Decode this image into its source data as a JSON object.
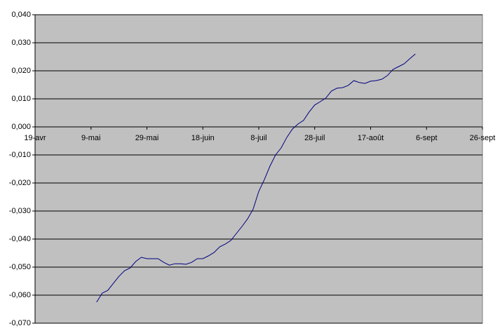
{
  "chart_data": {
    "type": "line",
    "categories": [
      "19-avr",
      null,
      null,
      null,
      null,
      null,
      null,
      null,
      null,
      null,
      "9-mai",
      null,
      null,
      null,
      null,
      null,
      null,
      null,
      null,
      null,
      "29-mai",
      null,
      null,
      null,
      null,
      null,
      null,
      null,
      null,
      null,
      "18-juin",
      null,
      null,
      null,
      null,
      null,
      null,
      null,
      null,
      null,
      "8-juil",
      null,
      null,
      null,
      null,
      null,
      null,
      null,
      null,
      null,
      "28-juil",
      null,
      null,
      null,
      null,
      null,
      null,
      null,
      null,
      null,
      "17-août",
      null,
      null,
      null,
      null,
      null,
      null,
      null,
      null,
      null,
      "6-sept",
      null,
      null,
      null,
      null,
      null,
      null,
      null,
      null,
      null,
      "26-sept"
    ],
    "series": [
      {
        "color": "#000080",
        "values": [
          null,
          null,
          null,
          null,
          null,
          null,
          null,
          null,
          null,
          null,
          null,
          -0.0625,
          -0.0593,
          -0.0583,
          -0.0558,
          -0.0533,
          -0.0513,
          -0.0503,
          -0.048,
          -0.0465,
          -0.047,
          -0.047,
          -0.047,
          -0.0483,
          -0.0493,
          -0.0488,
          -0.0488,
          -0.049,
          -0.0483,
          -0.047,
          -0.047,
          -0.046,
          -0.0448,
          -0.0428,
          -0.0418,
          -0.0405,
          -0.038,
          -0.0355,
          -0.0328,
          -0.0293,
          -0.023,
          -0.0188,
          -0.014,
          -0.01,
          -0.0075,
          -0.0038,
          -0.0008,
          0.001,
          0.0023,
          0.0053,
          0.0078,
          0.009,
          0.0103,
          0.0128,
          0.0138,
          0.014,
          0.0148,
          0.0165,
          0.0158,
          0.0155,
          0.0163,
          0.0165,
          0.017,
          0.0183,
          0.0205,
          0.0215,
          0.0225,
          0.0243,
          0.026,
          null,
          null,
          null,
          null,
          null,
          null,
          null,
          null,
          null,
          null,
          null,
          null
        ]
      }
    ],
    "ylim": [
      -0.07,
      0.04
    ],
    "yticks": [
      {
        "value": -0.07,
        "label": "-0,070"
      },
      {
        "value": -0.06,
        "label": "-0,060"
      },
      {
        "value": -0.05,
        "label": "-0,050"
      },
      {
        "value": -0.04,
        "label": "-0,040"
      },
      {
        "value": -0.03,
        "label": "-0,030"
      },
      {
        "value": -0.02,
        "label": "-0,020"
      },
      {
        "value": -0.01,
        "label": "-0,010"
      },
      {
        "value": 0,
        "label": "0,000"
      },
      {
        "value": 0.01,
        "label": "0,010"
      },
      {
        "value": 0.02,
        "label": "0,020"
      },
      {
        "value": 0.03,
        "label": "0,030"
      },
      {
        "value": 0.04,
        "label": "0,040"
      }
    ],
    "grid": true,
    "background": "#c0c0c0"
  }
}
